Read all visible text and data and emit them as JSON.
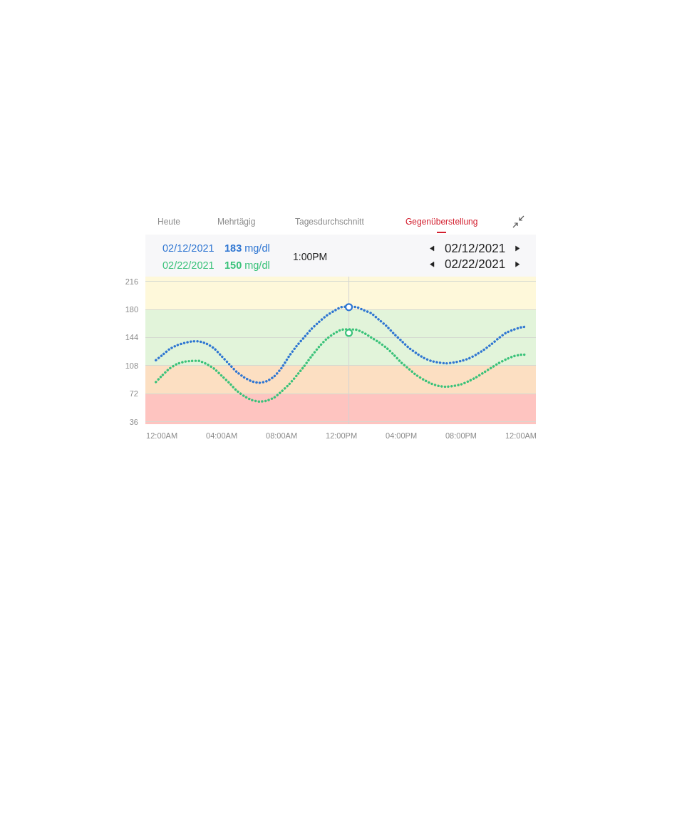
{
  "chart_data": {
    "type": "line",
    "annotations": [
      "Heute",
      "Mehrtägig",
      "Tagesdurchschnitt",
      "Gegenüberstellung",
      "183 mg/dl",
      "150 mg/dl",
      "1:00PM",
      "02/12/2021",
      "02/22/2021"
    ],
    "x": [
      -0.4,
      0,
      0.5,
      1,
      1.5,
      2,
      2.5,
      3,
      3.5,
      4,
      4.5,
      5,
      5.5,
      6,
      6.5,
      7,
      7.5,
      8,
      8.5,
      9,
      9.5,
      10,
      10.5,
      11,
      11.5,
      12,
      13,
      13.5,
      14,
      14.5,
      15,
      15.5,
      16,
      16.5,
      17,
      17.5,
      18,
      18.5,
      19,
      19.5,
      20,
      20.5,
      21,
      21.5,
      22,
      22.5,
      23,
      23.5,
      24,
      24.35
    ],
    "xlim": [
      -1.1,
      25
    ],
    "xticks": [
      {
        "value": 0,
        "label": "12:00AM"
      },
      {
        "value": 4,
        "label": "04:00AM"
      },
      {
        "value": 8,
        "label": "08:00AM"
      },
      {
        "value": 12,
        "label": "12:00PM"
      },
      {
        "value": 16,
        "label": "04:00PM"
      },
      {
        "value": 20,
        "label": "08:00PM"
      },
      {
        "value": 24,
        "label": "12:00AM"
      }
    ],
    "ylim": [
      33,
      223
    ],
    "yticks": [
      36,
      72,
      108,
      144,
      180,
      216
    ],
    "grid": "y",
    "legend": "top left",
    "line_style": "dotted",
    "bands": [
      {
        "axis": "y",
        "from": 33,
        "to": 72,
        "color": "#fec4c0"
      },
      {
        "axis": "y",
        "from": 72,
        "to": 108,
        "color": "#fcdfc2"
      },
      {
        "axis": "y",
        "from": 108,
        "to": 180,
        "color": "#e2f4da"
      },
      {
        "axis": "y",
        "from": 180,
        "to": 223,
        "color": "#fef8da"
      }
    ],
    "ref_lines": [
      {
        "axis": "x",
        "value": 12.5,
        "color": "#d3d3d3"
      }
    ],
    "series": [
      {
        "name": "02/12/2021",
        "color": "#2f76d2",
        "values": [
          115,
          121,
          129,
          134,
          137,
          139,
          139,
          136,
          130,
          120,
          110,
          100,
          93,
          88,
          86,
          88,
          94,
          105,
          120,
          133,
          144,
          155,
          164,
          172,
          178,
          183,
          183,
          179,
          175,
          167,
          159,
          149,
          140,
          131,
          124,
          118,
          114,
          112,
          111,
          112,
          114,
          117,
          122,
          128,
          135,
          143,
          150,
          154,
          157,
          158
        ]
      },
      {
        "name": "02/22/2021",
        "color": "#3ac27a",
        "values": [
          87,
          95,
          104,
          110,
          113,
          114,
          114,
          110,
          104,
          95,
          86,
          76,
          69,
          64,
          62,
          63,
          67,
          75,
          84,
          95,
          107,
          120,
          132,
          142,
          149,
          154,
          154,
          150,
          144,
          138,
          131,
          122,
          112,
          104,
          96,
          90,
          85,
          82,
          81,
          82,
          84,
          88,
          93,
          99,
          105,
          111,
          116,
          120,
          122,
          122
        ]
      },
      {
        "type": "scatter",
        "marker": "circle",
        "x": [
          12.5,
          12.5
        ],
        "values": [
          183,
          150
        ],
        "colors": [
          "#2f76d2",
          "#3ac27a"
        ]
      }
    ]
  }
}
